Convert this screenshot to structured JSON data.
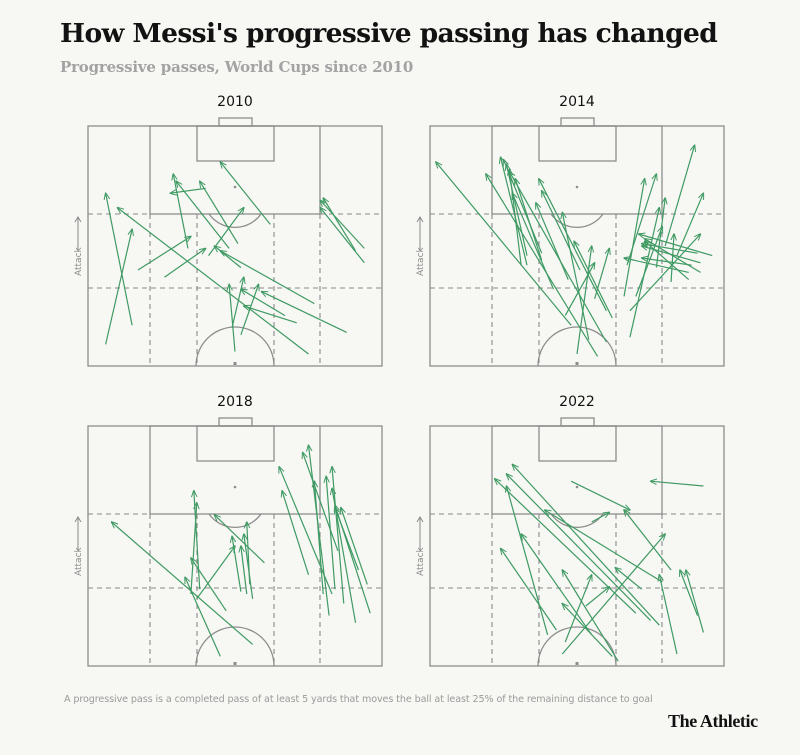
{
  "title": "How Messi's progressive passing has changed",
  "subtitle": "Progressive passes, World Cups since 2010",
  "footnote": "A progressive pass is a completed pass of at least 5 yards that moves the ball at least 25% of the remaining distance to goal",
  "brand": "The Athletic",
  "axis_label": "Attack",
  "colors": {
    "arrow": "#3f9a63",
    "pitch_line": "#8d8d8d",
    "dash_line": "#8a8a8a",
    "background": "#f7f7f4"
  },
  "chart_data": {
    "type": "scatter",
    "note": "Pass arrows on a half pitch. x = 0..100 across the width (left to right), y = 0..100 toward the attacking goal (0 = halfway line, 100 = goal line).",
    "xlim": [
      0,
      100
    ],
    "ylim": [
      0,
      100
    ],
    "panels": [
      {
        "label": "2010",
        "passes": [
          {
            "x1": 6,
            "y1": 9,
            "x2": 15,
            "y2": 57
          },
          {
            "x1": 15,
            "y1": 17,
            "x2": 6,
            "y2": 72
          },
          {
            "x1": 17,
            "y1": 40,
            "x2": 35,
            "y2": 54
          },
          {
            "x1": 26,
            "y1": 37,
            "x2": 40,
            "y2": 49
          },
          {
            "x1": 34,
            "y1": 49,
            "x2": 29,
            "y2": 80
          },
          {
            "x1": 48,
            "y1": 49,
            "x2": 30,
            "y2": 77
          },
          {
            "x1": 40,
            "y1": 74,
            "x2": 28,
            "y2": 72
          },
          {
            "x1": 51,
            "y1": 51,
            "x2": 38,
            "y2": 77
          },
          {
            "x1": 41,
            "y1": 46,
            "x2": 53,
            "y2": 66
          },
          {
            "x1": 62,
            "y1": 59,
            "x2": 45,
            "y2": 85
          },
          {
            "x1": 49,
            "y1": 16,
            "x2": 53,
            "y2": 37
          },
          {
            "x1": 50,
            "y1": 6,
            "x2": 48,
            "y2": 34
          },
          {
            "x1": 52,
            "y1": 13,
            "x2": 58,
            "y2": 34
          },
          {
            "x1": 52,
            "y1": 41,
            "x2": 43,
            "y2": 50
          },
          {
            "x1": 77,
            "y1": 26,
            "x2": 45,
            "y2": 48
          },
          {
            "x1": 67,
            "y1": 21,
            "x2": 52,
            "y2": 32
          },
          {
            "x1": 71,
            "y1": 18,
            "x2": 53,
            "y2": 25
          },
          {
            "x1": 88,
            "y1": 14,
            "x2": 59,
            "y2": 31
          },
          {
            "x1": 75,
            "y1": 5,
            "x2": 10,
            "y2": 66
          },
          {
            "x1": 91,
            "y1": 48,
            "x2": 80,
            "y2": 70
          },
          {
            "x1": 94,
            "y1": 43,
            "x2": 79,
            "y2": 66
          },
          {
            "x1": 94,
            "y1": 49,
            "x2": 79,
            "y2": 69
          }
        ]
      },
      {
        "label": "2014",
        "passes": [
          {
            "x1": 48,
            "y1": 17,
            "x2": 2,
            "y2": 85
          },
          {
            "x1": 57,
            "y1": 4,
            "x2": 19,
            "y2": 80
          },
          {
            "x1": 31,
            "y1": 42,
            "x2": 27,
            "y2": 82
          },
          {
            "x1": 33,
            "y1": 46,
            "x2": 26,
            "y2": 84
          },
          {
            "x1": 33,
            "y1": 42,
            "x2": 24,
            "y2": 87
          },
          {
            "x1": 38,
            "y1": 44,
            "x2": 29,
            "y2": 78
          },
          {
            "x1": 38,
            "y1": 47,
            "x2": 25,
            "y2": 86
          },
          {
            "x1": 42,
            "y1": 32,
            "x2": 28,
            "y2": 72
          },
          {
            "x1": 51,
            "y1": 40,
            "x2": 38,
            "y2": 73
          },
          {
            "x1": 47,
            "y1": 36,
            "x2": 36,
            "y2": 68
          },
          {
            "x1": 60,
            "y1": 23,
            "x2": 37,
            "y2": 78
          },
          {
            "x1": 62,
            "y1": 20,
            "x2": 49,
            "y2": 52
          },
          {
            "x1": 60,
            "y1": 10,
            "x2": 27,
            "y2": 81
          },
          {
            "x1": 54,
            "y1": 11,
            "x2": 45,
            "y2": 64
          },
          {
            "x1": 50,
            "y1": 5,
            "x2": 55,
            "y2": 50
          },
          {
            "x1": 46,
            "y1": 21,
            "x2": 56,
            "y2": 43
          },
          {
            "x1": 56,
            "y1": 28,
            "x2": 61,
            "y2": 49
          },
          {
            "x1": 66,
            "y1": 29,
            "x2": 73,
            "y2": 78
          },
          {
            "x1": 67,
            "y1": 42,
            "x2": 77,
            "y2": 80
          },
          {
            "x1": 70,
            "y1": 29,
            "x2": 79,
            "y2": 58
          },
          {
            "x1": 77,
            "y1": 41,
            "x2": 80,
            "y2": 70
          },
          {
            "x1": 80,
            "y1": 50,
            "x2": 90,
            "y2": 92
          },
          {
            "x1": 84,
            "y1": 46,
            "x2": 93,
            "y2": 72
          },
          {
            "x1": 68,
            "y1": 23,
            "x2": 92,
            "y2": 55
          },
          {
            "x1": 68,
            "y1": 12,
            "x2": 78,
            "y2": 66
          },
          {
            "x1": 88,
            "y1": 39,
            "x2": 66,
            "y2": 45
          },
          {
            "x1": 92,
            "y1": 43,
            "x2": 72,
            "y2": 50
          },
          {
            "x1": 91,
            "y1": 47,
            "x2": 72,
            "y2": 51
          },
          {
            "x1": 96,
            "y1": 46,
            "x2": 71,
            "y2": 55
          },
          {
            "x1": 92,
            "y1": 39,
            "x2": 73,
            "y2": 53
          },
          {
            "x1": 88,
            "y1": 36,
            "x2": 73,
            "y2": 52
          },
          {
            "x1": 89,
            "y1": 42,
            "x2": 72,
            "y2": 45
          },
          {
            "x1": 82,
            "y1": 35,
            "x2": 83,
            "y2": 55
          }
        ]
      },
      {
        "label": "2018",
        "passes": [
          {
            "x1": 56,
            "y1": 9,
            "x2": 8,
            "y2": 60
          },
          {
            "x1": 45,
            "y1": 4,
            "x2": 33,
            "y2": 37
          },
          {
            "x1": 47,
            "y1": 23,
            "x2": 35,
            "y2": 45
          },
          {
            "x1": 35,
            "y1": 30,
            "x2": 37,
            "y2": 68
          },
          {
            "x1": 38,
            "y1": 32,
            "x2": 36,
            "y2": 73
          },
          {
            "x1": 37,
            "y1": 28,
            "x2": 50,
            "y2": 50
          },
          {
            "x1": 52,
            "y1": 31,
            "x2": 49,
            "y2": 54
          },
          {
            "x1": 54,
            "y1": 30,
            "x2": 52,
            "y2": 50
          },
          {
            "x1": 56,
            "y1": 28,
            "x2": 53,
            "y2": 55
          },
          {
            "x1": 55,
            "y1": 34,
            "x2": 54,
            "y2": 60
          },
          {
            "x1": 60,
            "y1": 43,
            "x2": 43,
            "y2": 63
          },
          {
            "x1": 75,
            "y1": 38,
            "x2": 66,
            "y2": 73
          },
          {
            "x1": 83,
            "y1": 30,
            "x2": 65,
            "y2": 83
          },
          {
            "x1": 85,
            "y1": 48,
            "x2": 73,
            "y2": 89
          },
          {
            "x1": 82,
            "y1": 21,
            "x2": 75,
            "y2": 92
          },
          {
            "x1": 80,
            "y1": 30,
            "x2": 77,
            "y2": 77
          },
          {
            "x1": 84,
            "y1": 32,
            "x2": 81,
            "y2": 79
          },
          {
            "x1": 87,
            "y1": 26,
            "x2": 83,
            "y2": 83
          },
          {
            "x1": 91,
            "y1": 18,
            "x2": 83,
            "y2": 74
          },
          {
            "x1": 92,
            "y1": 40,
            "x2": 84,
            "y2": 66
          },
          {
            "x1": 96,
            "y1": 22,
            "x2": 84,
            "y2": 67
          },
          {
            "x1": 95,
            "y1": 34,
            "x2": 86,
            "y2": 66
          }
        ]
      },
      {
        "label": "2022",
        "passes": [
          {
            "x1": 64,
            "y1": 2,
            "x2": 45,
            "y2": 40
          },
          {
            "x1": 62,
            "y1": 4,
            "x2": 45,
            "y2": 26
          },
          {
            "x1": 46,
            "y1": 10,
            "x2": 55,
            "y2": 38
          },
          {
            "x1": 53,
            "y1": 25,
            "x2": 61,
            "y2": 33
          },
          {
            "x1": 40,
            "y1": 13,
            "x2": 26,
            "y2": 75
          },
          {
            "x1": 43,
            "y1": 15,
            "x2": 24,
            "y2": 49
          },
          {
            "x1": 55,
            "y1": 13,
            "x2": 31,
            "y2": 55
          },
          {
            "x1": 70,
            "y1": 22,
            "x2": 22,
            "y2": 78
          },
          {
            "x1": 75,
            "y1": 19,
            "x2": 26,
            "y2": 80
          },
          {
            "x1": 78,
            "y1": 17,
            "x2": 28,
            "y2": 84
          },
          {
            "x1": 79,
            "y1": 35,
            "x2": 39,
            "y2": 65
          },
          {
            "x1": 82,
            "y1": 40,
            "x2": 66,
            "y2": 65
          },
          {
            "x1": 93,
            "y1": 14,
            "x2": 87,
            "y2": 40
          },
          {
            "x1": 91,
            "y1": 21,
            "x2": 85,
            "y2": 40
          },
          {
            "x1": 84,
            "y1": 5,
            "x2": 78,
            "y2": 38
          },
          {
            "x1": 45,
            "y1": 5,
            "x2": 80,
            "y2": 55
          },
          {
            "x1": 72,
            "y1": 32,
            "x2": 63,
            "y2": 41
          },
          {
            "x1": 48,
            "y1": 77,
            "x2": 68,
            "y2": 65
          },
          {
            "x1": 93,
            "y1": 75,
            "x2": 75,
            "y2": 77
          },
          {
            "x1": 55,
            "y1": 60,
            "x2": 61,
            "y2": 64
          }
        ]
      }
    ]
  }
}
